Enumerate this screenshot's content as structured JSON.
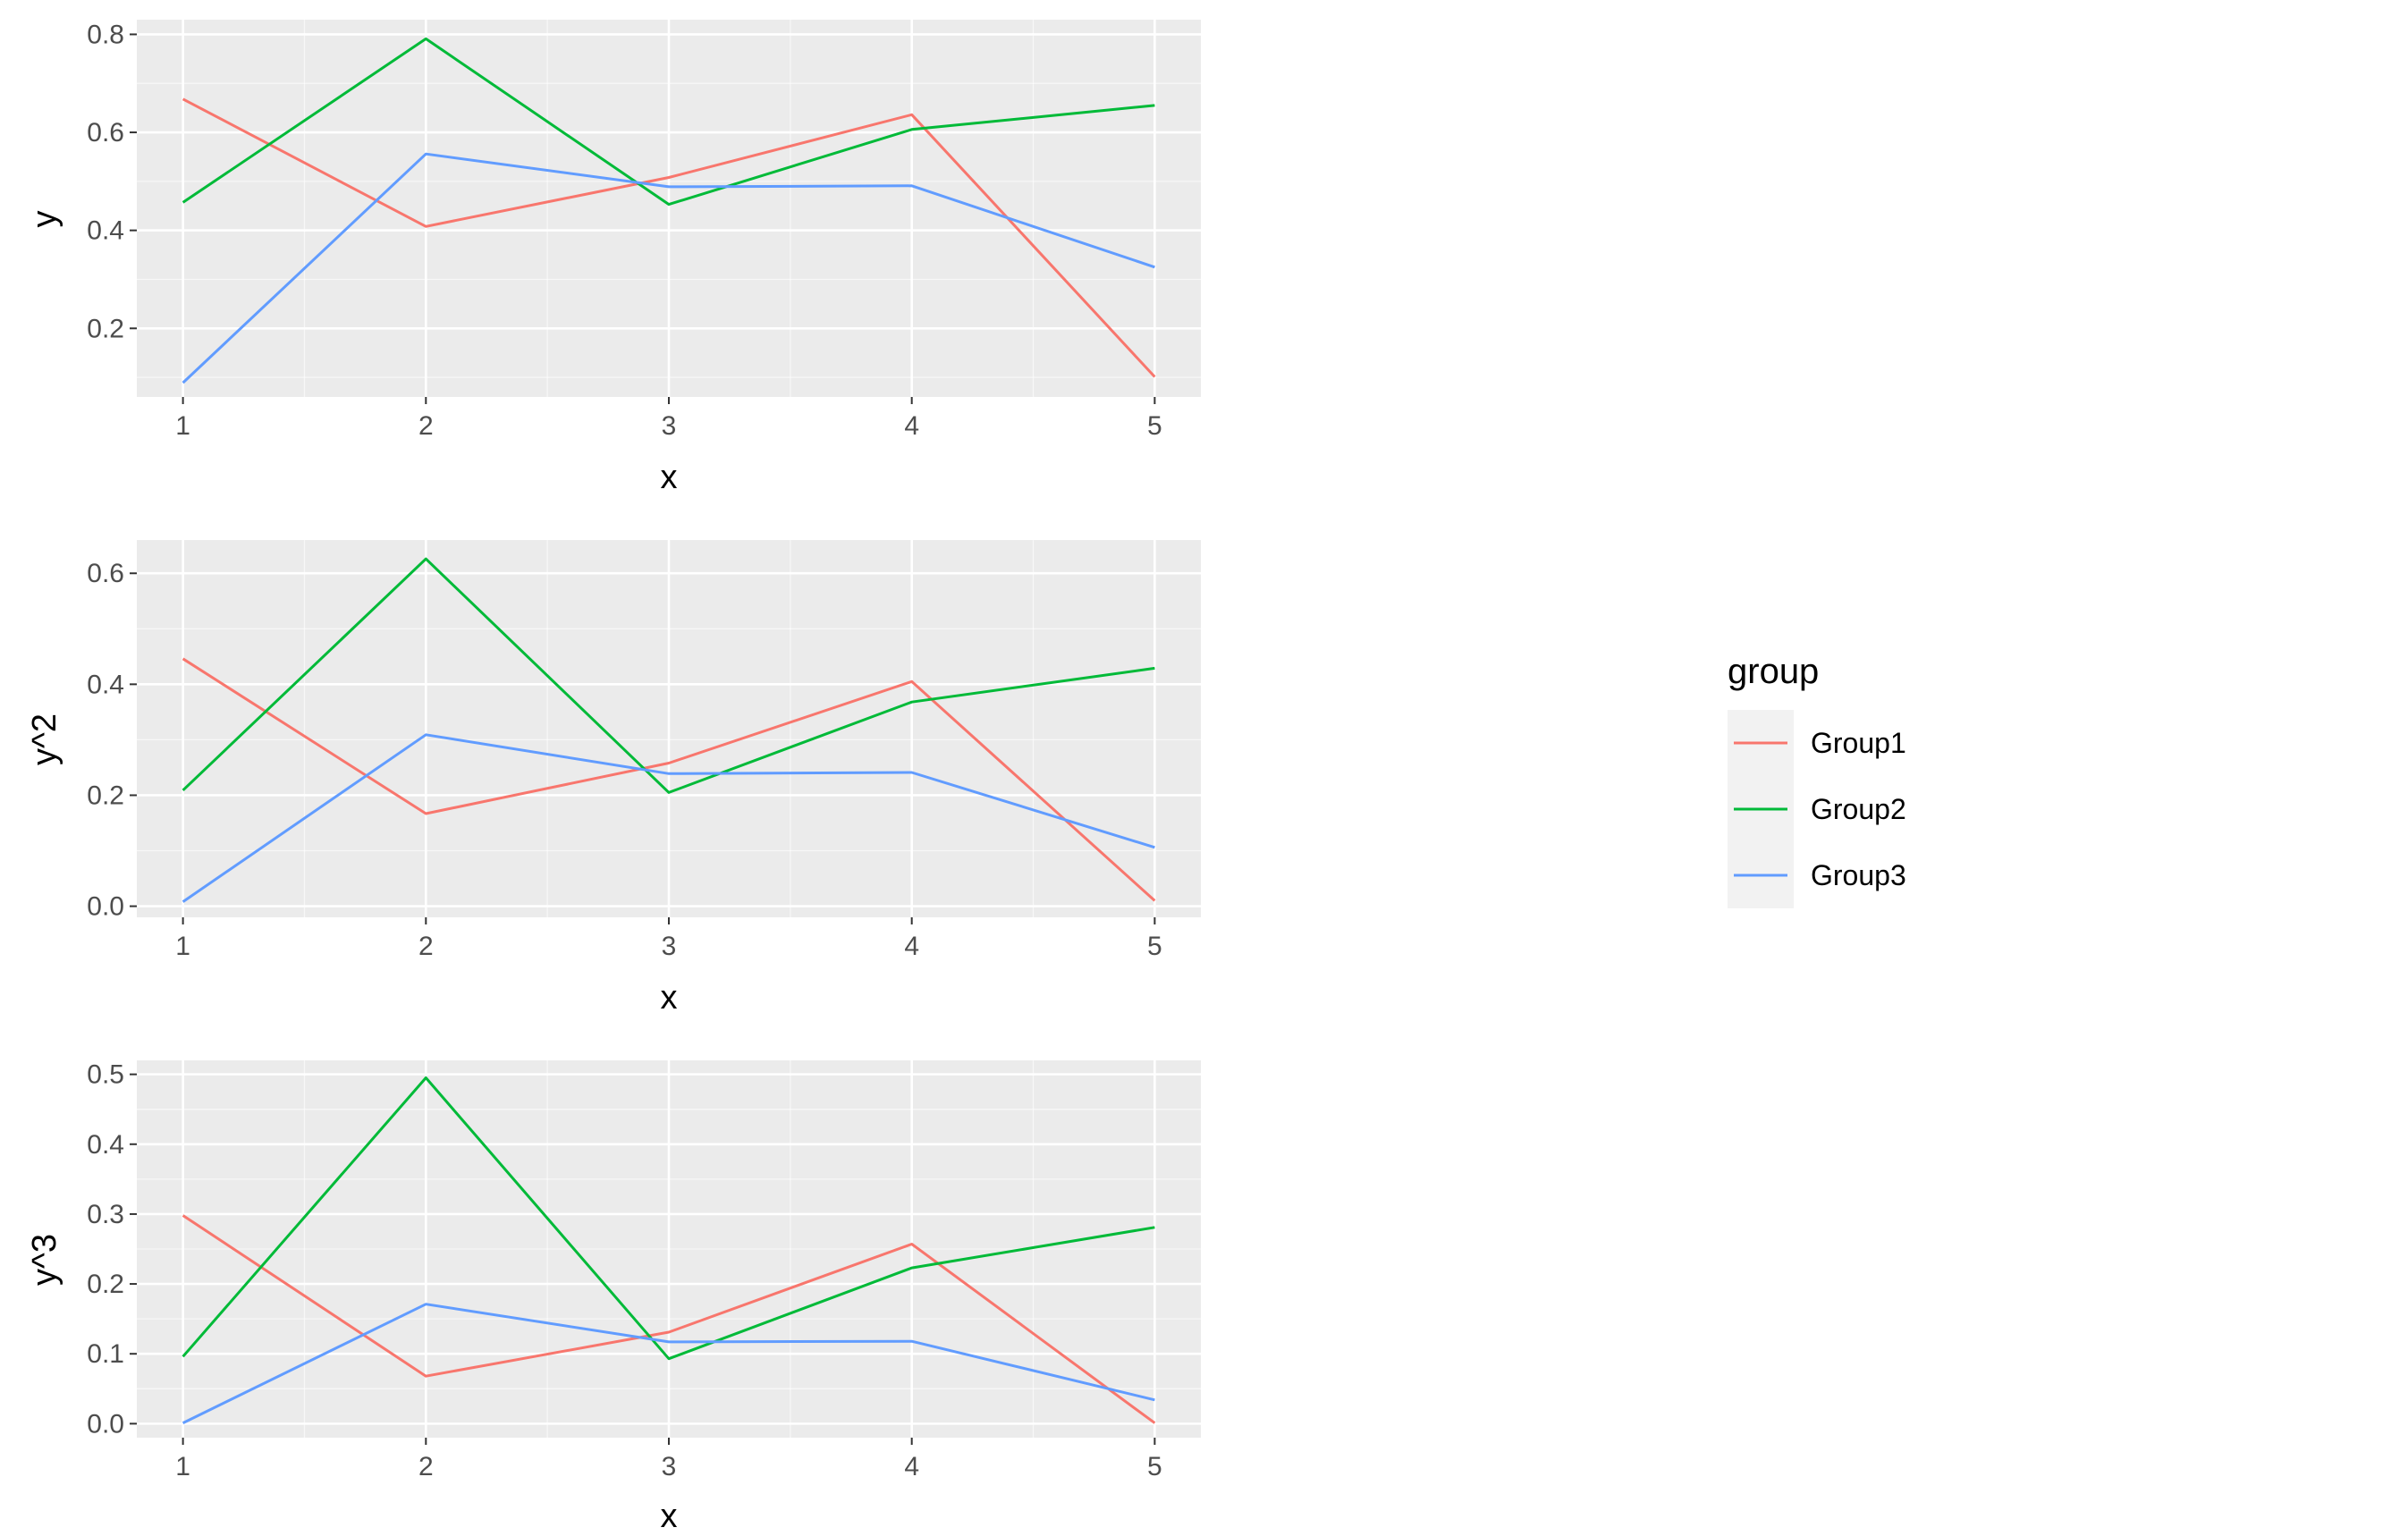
{
  "chart_data": [
    {
      "type": "line",
      "title": "",
      "xlabel": "x",
      "ylabel": "y",
      "x": [
        1,
        2,
        3,
        4,
        5
      ],
      "xlim": [
        0.81,
        5.19
      ],
      "ylim": [
        0.06,
        0.83
      ],
      "yticks": [
        0.2,
        0.4,
        0.6,
        0.8
      ],
      "ytick_labels": [
        "0.2",
        "0.4",
        "0.6",
        "0.8"
      ],
      "grid": true,
      "series": [
        {
          "name": "Group1",
          "values": [
            0.668,
            0.408,
            0.508,
            0.636,
            0.101
          ]
        },
        {
          "name": "Group2",
          "values": [
            0.457,
            0.791,
            0.453,
            0.606,
            0.655
          ]
        },
        {
          "name": "Group3",
          "values": [
            0.089,
            0.556,
            0.489,
            0.491,
            0.325
          ]
        }
      ]
    },
    {
      "type": "line",
      "title": "",
      "xlabel": "x",
      "ylabel": "y^2",
      "x": [
        1,
        2,
        3,
        4,
        5
      ],
      "xlim": [
        0.81,
        5.19
      ],
      "ylim": [
        -0.02,
        0.66
      ],
      "yticks": [
        0.0,
        0.2,
        0.4,
        0.6
      ],
      "ytick_labels": [
        "0.0",
        "0.2",
        "0.4",
        "0.6"
      ],
      "grid": true,
      "series": [
        {
          "name": "Group1",
          "values": [
            0.446,
            0.167,
            0.258,
            0.405,
            0.01
          ]
        },
        {
          "name": "Group2",
          "values": [
            0.209,
            0.626,
            0.205,
            0.368,
            0.429
          ]
        },
        {
          "name": "Group3",
          "values": [
            0.008,
            0.309,
            0.239,
            0.241,
            0.106
          ]
        }
      ]
    },
    {
      "type": "line",
      "title": "",
      "xlabel": "x",
      "ylabel": "y^3",
      "x": [
        1,
        2,
        3,
        4,
        5
      ],
      "xlim": [
        0.81,
        5.19
      ],
      "ylim": [
        -0.02,
        0.52
      ],
      "yticks": [
        0.0,
        0.1,
        0.2,
        0.3,
        0.4,
        0.5
      ],
      "ytick_labels": [
        "0.0",
        "0.1",
        "0.2",
        "0.3",
        "0.4",
        "0.5"
      ],
      "grid": true,
      "series": [
        {
          "name": "Group1",
          "values": [
            0.298,
            0.068,
            0.131,
            0.257,
            0.001
          ]
        },
        {
          "name": "Group2",
          "values": [
            0.096,
            0.495,
            0.093,
            0.223,
            0.281
          ]
        },
        {
          "name": "Group3",
          "values": [
            0.001,
            0.171,
            0.117,
            0.118,
            0.034
          ]
        }
      ]
    }
  ],
  "legend": {
    "title": "group",
    "placement": "right",
    "items": [
      {
        "label": "Group1",
        "color": "#F8766D"
      },
      {
        "label": "Group2",
        "color": "#00BA38"
      },
      {
        "label": "Group3",
        "color": "#619CFF"
      }
    ]
  },
  "colors": {
    "Group1": "#F8766D",
    "Group2": "#00BA38",
    "Group3": "#619CFF",
    "panel_background": "#EBEBEB",
    "grid_major": "#FFFFFF",
    "tick_text": "#4D4D4D",
    "tick_mark": "#333333"
  }
}
